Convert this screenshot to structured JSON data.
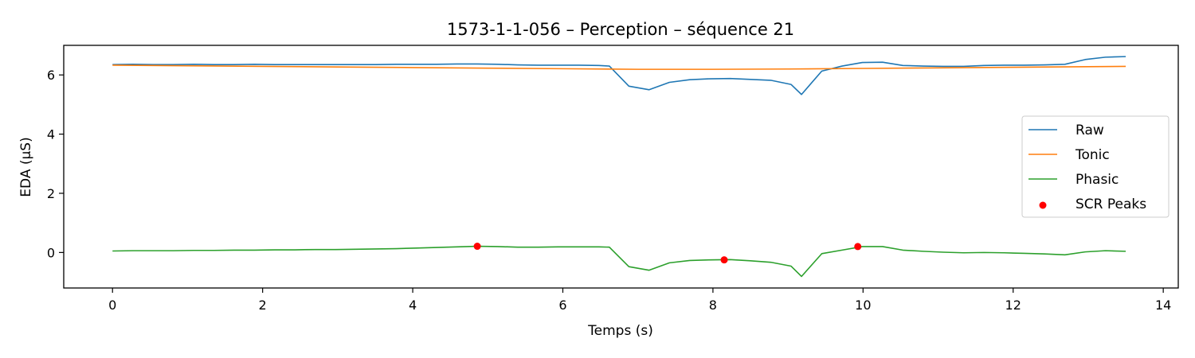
{
  "chart_data": {
    "type": "line",
    "title": "1573-1-1-056 – Perception – séquence 21",
    "xlabel": "Temps (s)",
    "ylabel": "EDA (µS)",
    "xlim": [
      -0.65,
      14.2
    ],
    "ylim": [
      -1.2,
      7.0
    ],
    "xticks": [
      0,
      2,
      4,
      6,
      8,
      10,
      12,
      14
    ],
    "yticks": [
      0,
      2,
      4,
      6
    ],
    "grid": false,
    "legend_position": "center-right",
    "series": [
      {
        "name": "Raw",
        "color": "#1f77b4",
        "x": [
          0,
          0.27,
          0.54,
          0.81,
          1.08,
          1.35,
          1.62,
          1.89,
          2.16,
          2.43,
          2.7,
          2.97,
          3.24,
          3.51,
          3.78,
          4.05,
          4.32,
          4.59,
          4.86,
          5.13,
          5.4,
          5.67,
          5.94,
          6.21,
          6.48,
          6.62,
          6.88,
          7.15,
          7.42,
          7.69,
          7.96,
          8.23,
          8.5,
          8.77,
          9.04,
          9.18,
          9.45,
          9.72,
          9.99,
          10.26,
          10.53,
          10.8,
          11.07,
          11.34,
          11.61,
          11.88,
          12.15,
          12.42,
          12.69,
          12.96,
          13.23,
          13.5
        ],
        "values": [
          6.35,
          6.36,
          6.35,
          6.35,
          6.36,
          6.35,
          6.35,
          6.36,
          6.35,
          6.35,
          6.35,
          6.35,
          6.35,
          6.35,
          6.36,
          6.36,
          6.36,
          6.37,
          6.37,
          6.36,
          6.34,
          6.33,
          6.33,
          6.33,
          6.32,
          6.3,
          5.62,
          5.5,
          5.75,
          5.84,
          5.87,
          5.88,
          5.85,
          5.82,
          5.68,
          5.34,
          6.13,
          6.3,
          6.42,
          6.43,
          6.32,
          6.3,
          6.29,
          6.29,
          6.32,
          6.33,
          6.33,
          6.34,
          6.36,
          6.52,
          6.6,
          6.62
        ]
      },
      {
        "name": "Tonic",
        "color": "#ff7f0e",
        "x": [
          0,
          1,
          2,
          3,
          4,
          5,
          6,
          7,
          8,
          9,
          10,
          11,
          12,
          13,
          13.5
        ],
        "values": [
          6.33,
          6.31,
          6.29,
          6.27,
          6.25,
          6.23,
          6.21,
          6.19,
          6.19,
          6.2,
          6.22,
          6.24,
          6.26,
          6.28,
          6.29
        ]
      },
      {
        "name": "Phasic",
        "color": "#2ca02c",
        "x": [
          0,
          0.27,
          0.54,
          0.81,
          1.08,
          1.35,
          1.62,
          1.89,
          2.16,
          2.43,
          2.7,
          2.97,
          3.24,
          3.51,
          3.78,
          4.05,
          4.32,
          4.59,
          4.86,
          5.13,
          5.4,
          5.67,
          5.94,
          6.21,
          6.48,
          6.62,
          6.88,
          7.15,
          7.42,
          7.69,
          7.96,
          8.23,
          8.5,
          8.77,
          9.04,
          9.18,
          9.45,
          9.72,
          9.99,
          10.26,
          10.53,
          10.8,
          11.07,
          11.34,
          11.61,
          11.88,
          12.15,
          12.42,
          12.69,
          12.96,
          13.23,
          13.5
        ],
        "values": [
          0.05,
          0.06,
          0.06,
          0.06,
          0.07,
          0.07,
          0.08,
          0.08,
          0.09,
          0.09,
          0.1,
          0.1,
          0.11,
          0.12,
          0.13,
          0.15,
          0.17,
          0.19,
          0.21,
          0.2,
          0.18,
          0.18,
          0.19,
          0.19,
          0.19,
          0.18,
          -0.48,
          -0.6,
          -0.35,
          -0.27,
          -0.25,
          -0.24,
          -0.28,
          -0.33,
          -0.46,
          -0.81,
          -0.04,
          0.08,
          0.2,
          0.2,
          0.08,
          0.04,
          0.01,
          -0.01,
          0.0,
          -0.01,
          -0.03,
          -0.05,
          -0.08,
          0.02,
          0.06,
          0.04
        ]
      }
    ],
    "peaks": {
      "name": "SCR Peaks",
      "color": "#ff0000",
      "x": [
        4.86,
        8.15,
        9.93
      ],
      "values": [
        0.21,
        -0.25,
        0.2
      ]
    }
  }
}
